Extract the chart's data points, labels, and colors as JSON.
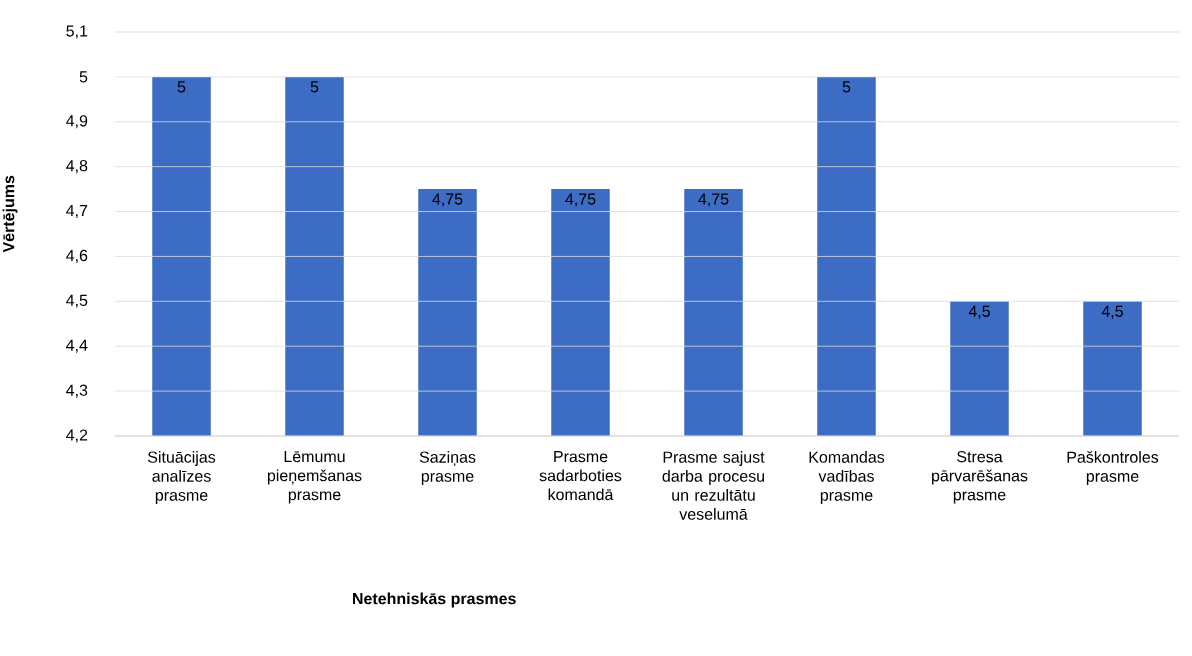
{
  "chart_data": {
    "type": "bar",
    "xlabel": "Netehniskās prasmes",
    "ylabel": "Vērtējums",
    "categories": [
      "Situācijas analīzes prasme",
      "Lēmumu pieņemšanas prasme",
      "Saziņas prasme",
      "Prasme sadarboties komandā",
      "Prasme sajust darba procesu un rezultātu veselumā",
      "Komandas vadības prasme",
      "Stresa pārvarēšanas prasme",
      "Paškontroles prasme"
    ],
    "values": [
      5,
      5,
      4.75,
      4.75,
      4.75,
      5,
      4.5,
      4.5
    ],
    "value_labels": [
      "5",
      "5",
      "4,75",
      "4,75",
      "4,75",
      "5",
      "4,5",
      "4,5"
    ],
    "color": "#3d6cc4",
    "ylim": [
      4.2,
      5.1
    ],
    "yticks": [
      {
        "value": 4.2,
        "label": "4,2"
      },
      {
        "value": 4.3,
        "label": "4,3"
      },
      {
        "value": 4.4,
        "label": "4,4"
      },
      {
        "value": 4.5,
        "label": "4,5"
      },
      {
        "value": 4.6,
        "label": "4,6"
      },
      {
        "value": 4.7,
        "label": "4,7"
      },
      {
        "value": 4.8,
        "label": "4,8"
      },
      {
        "value": 4.9,
        "label": "4,9"
      },
      {
        "value": 5,
        "label": "5"
      },
      {
        "value": 5.1,
        "label": "5,1"
      }
    ],
    "grid": "y"
  }
}
